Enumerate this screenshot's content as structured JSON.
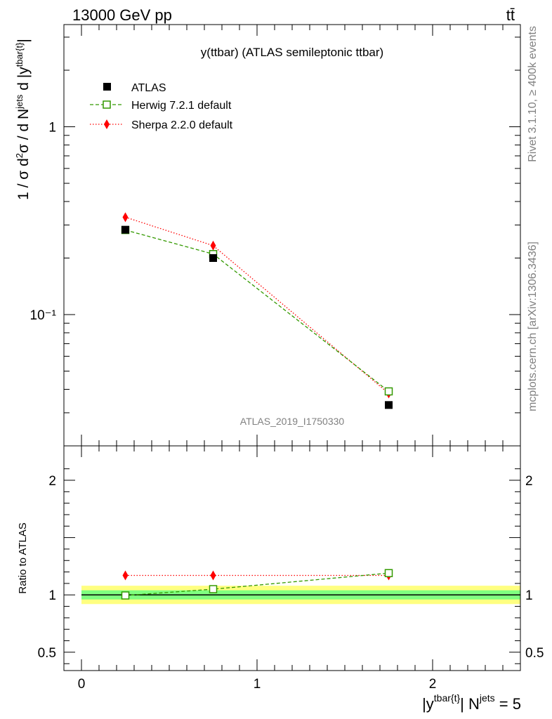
{
  "header": {
    "left": "13000 GeV pp",
    "right": "tt̄"
  },
  "side_labels": {
    "rivet": "Rivet 3.1.10, ≥ 400k events",
    "mcplots": "mcplots.cern.ch [arXiv:1306.3436]"
  },
  "chart_data": [
    {
      "type": "line",
      "title": "y(ttbar) (ATLAS semileptonic ttbar)",
      "watermark": "ATLAS_2019_I1750330",
      "ylabel": "1 / σ d²σ / d N^jets d |y^tbar{t}|",
      "yscale": "log",
      "ylim": [
        0.02,
        3.5
      ],
      "xlim": [
        -0.1,
        2.5
      ],
      "yticks": [
        {
          "value": 1,
          "label": "1"
        },
        {
          "value": 0.1,
          "label": "10⁻¹"
        }
      ],
      "legend_position": "top-left",
      "series": [
        {
          "name": "ATLAS",
          "x": [
            0.25,
            0.75,
            1.75
          ],
          "y": [
            0.283,
            0.2,
            0.033
          ],
          "color": "#000000",
          "marker": "filled-square"
        },
        {
          "name": "Herwig 7.2.1 default",
          "x": [
            0.25,
            0.75,
            1.75
          ],
          "y": [
            0.282,
            0.21,
            0.039
          ],
          "color": "#339900",
          "marker": "open-square",
          "line": "dashed"
        },
        {
          "name": "Sherpa 2.2.0 default",
          "x": [
            0.25,
            0.75,
            1.75
          ],
          "y": [
            0.33,
            0.233,
            0.038
          ],
          "color": "#ff0000",
          "marker": "diamond",
          "line": "dotted"
        }
      ]
    },
    {
      "type": "line",
      "ylabel": "Ratio to ATLAS",
      "xlabel": "|y^tbar{t}| N^jets = 5",
      "ylim": [
        0.34,
        2.3
      ],
      "xlim": [
        -0.1,
        2.5
      ],
      "xticks": [
        {
          "value": 0,
          "label": "0"
        },
        {
          "value": 1,
          "label": "1"
        },
        {
          "value": 2,
          "label": "2"
        }
      ],
      "yticks": [
        {
          "value": 2,
          "label": "2"
        },
        {
          "value": 1,
          "label": "1"
        },
        {
          "value": 0.5,
          "label": "0.5"
        }
      ],
      "bands": [
        {
          "name": "total uncertainty",
          "color": "#ffff80",
          "x": [
            0,
            2.5
          ],
          "low": 0.92,
          "high": 1.08
        },
        {
          "name": "stat uncertainty",
          "color": "#80ff80",
          "x": [
            0,
            2.5
          ],
          "low": 0.96,
          "high": 1.04
        }
      ],
      "series": [
        {
          "name": "ATLAS",
          "x": [
            0,
            2.5
          ],
          "y": [
            1.0,
            1.0
          ],
          "color": "#000000"
        },
        {
          "name": "Herwig 7.2.1 default",
          "x": [
            0.25,
            0.75,
            1.75
          ],
          "y": [
            0.995,
            1.05,
            1.19
          ],
          "color": "#339900",
          "marker": "open-square",
          "line": "dashed"
        },
        {
          "name": "Sherpa 2.2.0 default",
          "x": [
            0.25,
            0.75,
            1.75
          ],
          "y": [
            1.17,
            1.17,
            1.17
          ],
          "color": "#ff0000",
          "marker": "diamond",
          "line": "dotted"
        }
      ]
    }
  ]
}
